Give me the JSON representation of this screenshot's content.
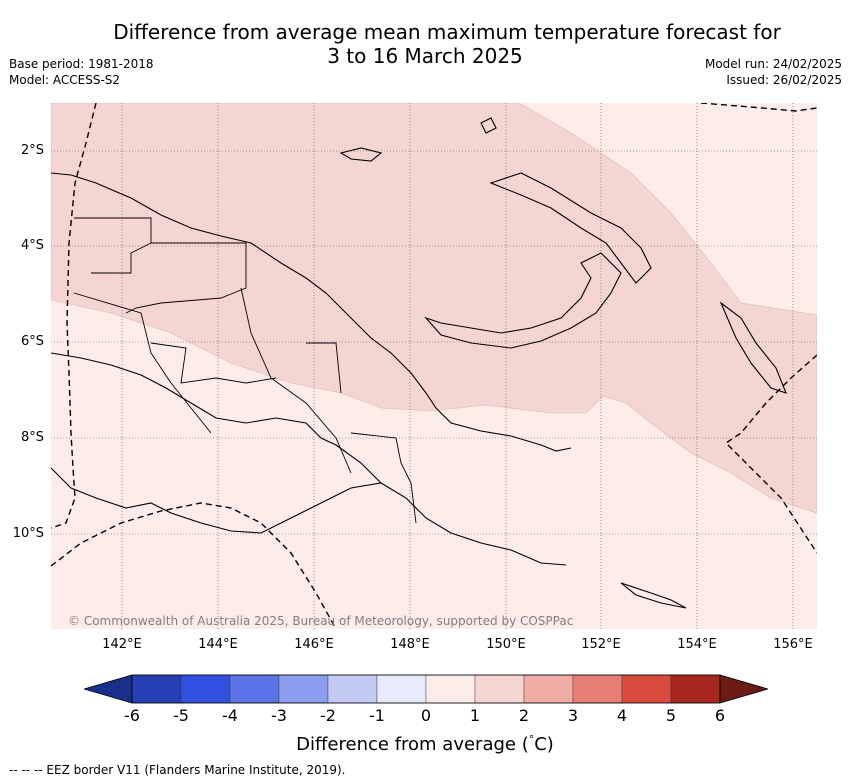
{
  "title_line1": "Difference from average mean maximum temperature forecast for",
  "title_line2": "3 to 16 March 2025",
  "base_period": "Base period: 1981-2018",
  "model": "Model: ACCESS-S2",
  "model_run": "Model run: 24/02/2025",
  "issued": "Issued: 26/02/2025",
  "lat_labels": [
    "2°S",
    "4°S",
    "6°S",
    "8°S",
    "10°S"
  ],
  "lon_labels": [
    "142°E",
    "144°E",
    "146°E",
    "148°E",
    "150°E",
    "152°E",
    "154°E",
    "156°E"
  ],
  "copyright": "© Commonwealth of Australia 2025, Bureau of Meteorology, supported by COSPPac",
  "colorbar": {
    "ticks": [
      "-6",
      "-5",
      "-4",
      "-3",
      "-2",
      "-1",
      "0",
      "1",
      "2",
      "3",
      "4",
      "5",
      "6"
    ],
    "colors": [
      "#1a2f8a",
      "#2440b3",
      "#3050e0",
      "#5a74e8",
      "#8c9ef0",
      "#c2caf5",
      "#e8ebfb",
      "#fdecea",
      "#f5d5d2",
      "#efaca5",
      "#e57f74",
      "#d94b3f",
      "#a8271f",
      "#6b1a14"
    ],
    "label_prefix": "Difference from average (",
    "label_unit": "C)",
    "label_degree": "°"
  },
  "footer": "--  --  -- EEZ border V11 (Flanders Marine Institute, 2019).",
  "map_data": {
    "region": "Papua New Guinea",
    "lat_range": [
      "-12",
      "-1"
    ],
    "lon_range": [
      "140.7",
      "156.5"
    ],
    "categories_present": [
      "0 to 1",
      "1 to 2"
    ],
    "fill_0_to_1": "#fdecea",
    "fill_1_to_2": "#f5d5d2"
  }
}
